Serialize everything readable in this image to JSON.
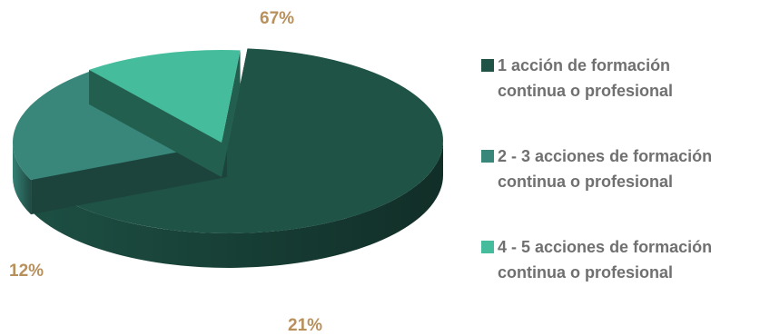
{
  "chart_data": {
    "type": "pie",
    "categories": [
      "1 acción de formación continua o profesional",
      "2 - 3 acciones de formación continua o profesional",
      "4 - 5 acciones de formación continua o profesional"
    ],
    "values": [
      67,
      21,
      12
    ],
    "value_labels": [
      "67%",
      "21%",
      "12%"
    ],
    "colors": [
      "#1f5346",
      "#38877a",
      "#45bd9d"
    ],
    "legend_placement": "right",
    "exploded": true,
    "three_d": true
  },
  "legend": {
    "items": [
      {
        "line1": "1 acción de formación",
        "line2": "continua o profesional",
        "color": "#1f5346"
      },
      {
        "line1": "2 - 3 acciones de formación",
        "line2": "continua o profesional",
        "color": "#38877a"
      },
      {
        "line1": "4 - 5 acciones de formación",
        "line2": "continua o profesional",
        "color": "#45bd9d"
      }
    ]
  }
}
